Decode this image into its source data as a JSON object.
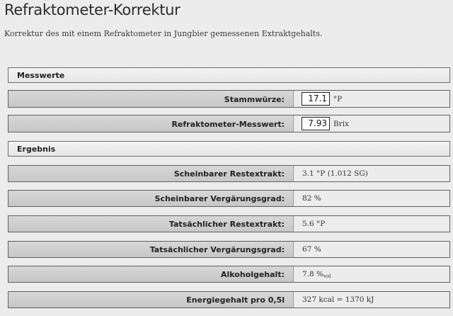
{
  "page": {
    "title": "Refraktometer-Korrektur",
    "subtitle": "Korrektur des mit einem Refraktometer in Jungbier gemessenen Extraktgehalts."
  },
  "sections": {
    "messwerte": "Messwerte",
    "ergebnis": "Ergebnis"
  },
  "inputs": [
    {
      "label": "Stammwürze:",
      "value": "17.1",
      "unit": "°P"
    },
    {
      "label": "Refraktometer-Messwert:",
      "value": "7.93",
      "unit": "Brix"
    }
  ],
  "results": [
    {
      "label": "Scheinbarer Restextrakt:",
      "value": "3.1 °P (1.012 SG)"
    },
    {
      "label": "Scheinbarer Vergärungsgrad:",
      "value": "82 %"
    },
    {
      "label": "Tatsächlicher Restextrakt:",
      "value": "5.6 °P"
    },
    {
      "label": "Tatsächlicher Vergärungsgrad:",
      "value": "67 %"
    },
    {
      "label": "Alkoholgehalt:",
      "value": "7.8 %",
      "sub": "vol"
    },
    {
      "label": "Energiegehalt pro 0,5l",
      "value": "327 kcal = 1370 kJ"
    }
  ]
}
